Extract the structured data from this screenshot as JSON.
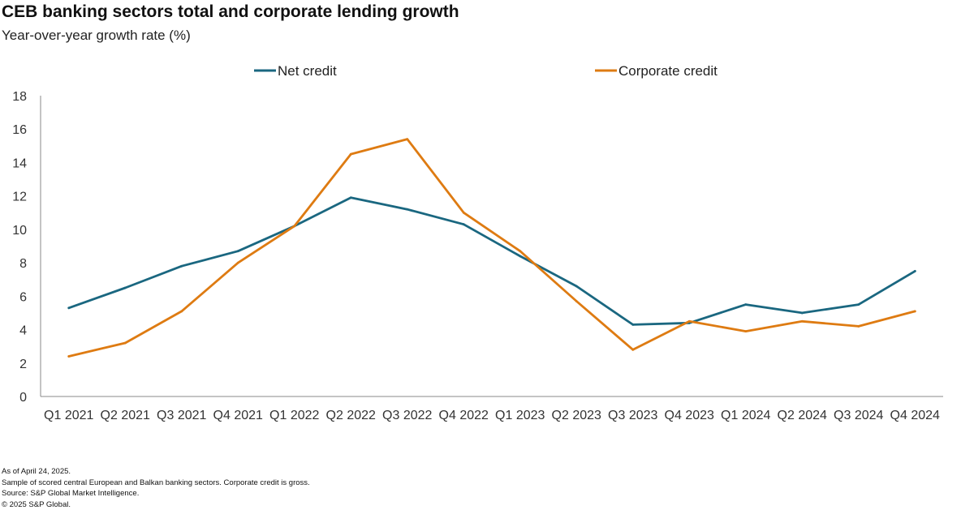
{
  "title": "CEB banking sectors total and corporate lending growth",
  "subtitle": "Year-over-year growth rate (%)",
  "chart_data": {
    "type": "line",
    "title": "CEB banking sectors total and corporate lending growth",
    "ylabel": "Year-over-year growth rate (%)",
    "xlabel": "",
    "categories": [
      "Q1 2021",
      "Q2 2021",
      "Q3 2021",
      "Q4 2021",
      "Q1 2022",
      "Q2 2022",
      "Q3 2022",
      "Q4 2022",
      "Q1 2023",
      "Q2 2023",
      "Q3 2023",
      "Q4 2023",
      "Q1 2024",
      "Q2 2024",
      "Q3 2024",
      "Q4 2024"
    ],
    "yticks": [
      0,
      2,
      4,
      6,
      8,
      10,
      12,
      14,
      16,
      18
    ],
    "ylim": [
      0,
      18
    ],
    "grid": false,
    "legend_position": "top",
    "series": [
      {
        "name": "Net credit",
        "color": "#1a6780",
        "values": [
          5.3,
          6.5,
          7.8,
          8.7,
          10.2,
          11.9,
          11.2,
          10.3,
          8.4,
          6.6,
          4.3,
          4.4,
          5.5,
          5.0,
          5.5,
          7.5
        ]
      },
      {
        "name": "Corporate credit",
        "color": "#de7b12",
        "values": [
          2.4,
          3.2,
          5.1,
          8.0,
          10.2,
          14.5,
          15.4,
          11.0,
          8.7,
          5.7,
          2.8,
          4.5,
          3.9,
          4.5,
          4.2,
          5.1
        ]
      }
    ]
  },
  "footnotes": [
    "As of April 24, 2025.",
    "Sample of scored central European and Balkan banking sectors. Corporate credit is gross.",
    "Source: S&P Global Market Intelligence.",
    "© 2025 S&P Global."
  ]
}
